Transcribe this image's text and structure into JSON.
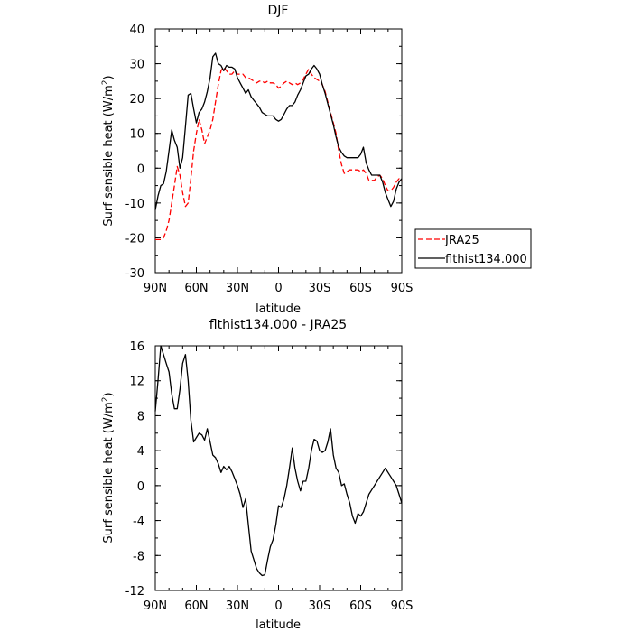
{
  "chart_data": [
    {
      "type": "line",
      "title": "DJF",
      "xlabel": "latitude",
      "ylabel": "Surf sensible heat (W/m",
      "ylabel_sup": "2",
      "ylabel_close": ")",
      "xlim": [
        -90,
        90
      ],
      "ylim": [
        -30,
        40
      ],
      "xticks": [
        -90,
        -60,
        -30,
        0,
        30,
        60,
        90
      ],
      "xtick_labels": [
        "90N",
        "60N",
        "30N",
        "0",
        "30S",
        "60S",
        "90S"
      ],
      "yticks": [
        -30,
        -20,
        -10,
        0,
        10,
        20,
        30,
        40
      ],
      "ytick_labels": [
        "-30",
        "-20",
        "-10",
        "0",
        "10",
        "20",
        "30",
        "40"
      ],
      "grid": false,
      "legend_position": "right, outside plot",
      "series": [
        {
          "name": "JRA25",
          "color": "#ff0000",
          "dash": "dashed",
          "x": [
            -90,
            -88,
            -86,
            -84,
            -82,
            -80,
            -78,
            -76,
            -74,
            -72,
            -70,
            -68,
            -66,
            -64,
            -62,
            -60,
            -58,
            -56,
            -54,
            -52,
            -50,
            -48,
            -46,
            -44,
            -42,
            -40,
            -38,
            -36,
            -34,
            -32,
            -30,
            -28,
            -26,
            -24,
            -22,
            -20,
            -18,
            -16,
            -14,
            -12,
            -10,
            -8,
            -6,
            -4,
            -2,
            0,
            2,
            4,
            6,
            8,
            10,
            12,
            14,
            16,
            18,
            20,
            22,
            24,
            26,
            28,
            30,
            32,
            34,
            36,
            38,
            40,
            42,
            44,
            46,
            48,
            50,
            52,
            54,
            56,
            58,
            60,
            62,
            64,
            66,
            68,
            70,
            72,
            74,
            76,
            78,
            80,
            82,
            84,
            86,
            88,
            90
          ],
          "y": [
            -20.5,
            -20.5,
            -20.5,
            -20,
            -18,
            -15,
            -10,
            -5,
            0.5,
            -2,
            -7,
            -11,
            -10,
            -3,
            5,
            10,
            14,
            11,
            7,
            9,
            11,
            14,
            19,
            24,
            28,
            29,
            28,
            27,
            27,
            28,
            27,
            27,
            27,
            26,
            26,
            25.5,
            25,
            24.5,
            25,
            25,
            24.5,
            25,
            24.5,
            24.5,
            24,
            23,
            23.5,
            24.5,
            25,
            24.5,
            24,
            24.5,
            24,
            24.5,
            25.5,
            27,
            28.5,
            27,
            26,
            25.5,
            25,
            24,
            22,
            19,
            16,
            13,
            10,
            5,
            1,
            -1.5,
            -1,
            -0.5,
            -0.5,
            -0.5,
            -0.5,
            -1,
            -0.5,
            -1.5,
            -3.5,
            -3.5,
            -3.5,
            -2.5,
            -2,
            -3,
            -5,
            -6.5,
            -6.5,
            -5.5,
            -4,
            -3,
            -3.5
          ]
        },
        {
          "name": "flthist134.000",
          "color": "#000000",
          "dash": "solid",
          "x": [
            -90,
            -88,
            -86,
            -84,
            -82,
            -80,
            -78,
            -76,
            -74,
            -72,
            -70,
            -68,
            -66,
            -64,
            -62,
            -60,
            -58,
            -56,
            -54,
            -52,
            -50,
            -48,
            -46,
            -44,
            -42,
            -40,
            -38,
            -36,
            -34,
            -32,
            -30,
            -28,
            -26,
            -24,
            -22,
            -20,
            -18,
            -16,
            -14,
            -12,
            -10,
            -8,
            -6,
            -4,
            -2,
            0,
            2,
            4,
            6,
            8,
            10,
            12,
            14,
            16,
            18,
            20,
            22,
            24,
            26,
            28,
            30,
            32,
            34,
            36,
            38,
            40,
            42,
            44,
            46,
            48,
            50,
            52,
            54,
            56,
            58,
            60,
            62,
            64,
            66,
            68,
            70,
            72,
            74,
            76,
            78,
            80,
            82,
            84,
            86,
            88,
            90
          ],
          "y": [
            -12,
            -8,
            -5,
            -4.5,
            -1,
            5,
            11,
            8,
            6,
            0,
            3,
            12,
            21,
            21.5,
            17,
            13,
            16,
            17,
            19,
            22,
            26,
            32,
            33,
            30,
            29.5,
            28,
            29.5,
            29,
            29,
            28.5,
            26,
            24.5,
            23,
            21.5,
            22.5,
            20.5,
            19.5,
            18.5,
            17.5,
            16,
            15.5,
            15,
            15,
            15,
            14,
            13.5,
            14,
            15.5,
            17,
            18,
            18,
            19,
            21,
            22.5,
            24.5,
            26.5,
            27,
            28.5,
            29.5,
            28.5,
            27,
            24,
            21.5,
            18.5,
            15.5,
            12.5,
            9,
            6,
            4.5,
            3.5,
            3,
            3,
            3,
            3,
            3,
            4,
            6,
            1.5,
            -0.5,
            -2,
            -2,
            -2,
            -2,
            -4,
            -7,
            -9,
            -11,
            -9.5,
            -6,
            -4,
            -3
          ]
        }
      ]
    },
    {
      "type": "line",
      "title": "flthist134.000 - JRA25",
      "xlabel": "latitude",
      "ylabel": "Surf sensible heat (W/m",
      "ylabel_sup": "2",
      "ylabel_close": ")",
      "xlim": [
        -90,
        90
      ],
      "ylim": [
        -12,
        16
      ],
      "xticks": [
        -90,
        -60,
        -30,
        0,
        30,
        60,
        90
      ],
      "xtick_labels": [
        "90N",
        "60N",
        "30N",
        "0",
        "30S",
        "60S",
        "90S"
      ],
      "yticks": [
        -12,
        -8,
        -4,
        0,
        4,
        8,
        12,
        16
      ],
      "ytick_labels": [
        "-12",
        "-8",
        "-4",
        "0",
        "4",
        "8",
        "12",
        "16"
      ],
      "grid": false,
      "series": [
        {
          "color": "#000000",
          "dash": "solid",
          "x": [
            -90,
            -88,
            -86,
            -84,
            -82,
            -80,
            -78,
            -76,
            -74,
            -72,
            -70,
            -68,
            -66,
            -64,
            -62,
            -60,
            -58,
            -56,
            -54,
            -52,
            -50,
            -48,
            -46,
            -44,
            -42,
            -40,
            -38,
            -36,
            -34,
            -32,
            -30,
            -28,
            -26,
            -24,
            -22,
            -20,
            -18,
            -16,
            -14,
            -12,
            -10,
            -8,
            -6,
            -4,
            -2,
            0,
            2,
            4,
            6,
            8,
            10,
            12,
            14,
            16,
            18,
            20,
            22,
            24,
            26,
            28,
            30,
            32,
            34,
            36,
            38,
            40,
            42,
            44,
            46,
            48,
            50,
            52,
            54,
            56,
            58,
            60,
            62,
            64,
            66,
            68,
            70,
            72,
            74,
            76,
            78,
            80,
            82,
            84,
            86,
            88,
            90
          ],
          "y": [
            8.5,
            12,
            16,
            15,
            14,
            13,
            10.5,
            8.8,
            8.8,
            11,
            14,
            15,
            12,
            7.5,
            5,
            5.5,
            6,
            5.8,
            5.2,
            6.5,
            5,
            3.5,
            3.2,
            2.5,
            1.5,
            2.2,
            1.8,
            2.2,
            1.6,
            0.8,
            0,
            -1,
            -2.5,
            -1.5,
            -4.5,
            -7.5,
            -8.5,
            -9.5,
            -10,
            -10.3,
            -10.2,
            -8.5,
            -7,
            -6.2,
            -4.5,
            -2.3,
            -2.5,
            -1.5,
            0,
            2,
            4.3,
            2,
            0.5,
            -0.6,
            0.5,
            0.5,
            2,
            4,
            5.3,
            5.1,
            4,
            3.8,
            4,
            5,
            6.5,
            3.5,
            2,
            1.5,
            0,
            0.2,
            -1,
            -2,
            -3.5,
            -4.3,
            -3.2,
            -3.5,
            -3,
            -2,
            -1,
            -0.5,
            0,
            0.5,
            1,
            1.5,
            2,
            1.5,
            1,
            0.5,
            0,
            -1,
            -2
          ]
        }
      ]
    }
  ]
}
